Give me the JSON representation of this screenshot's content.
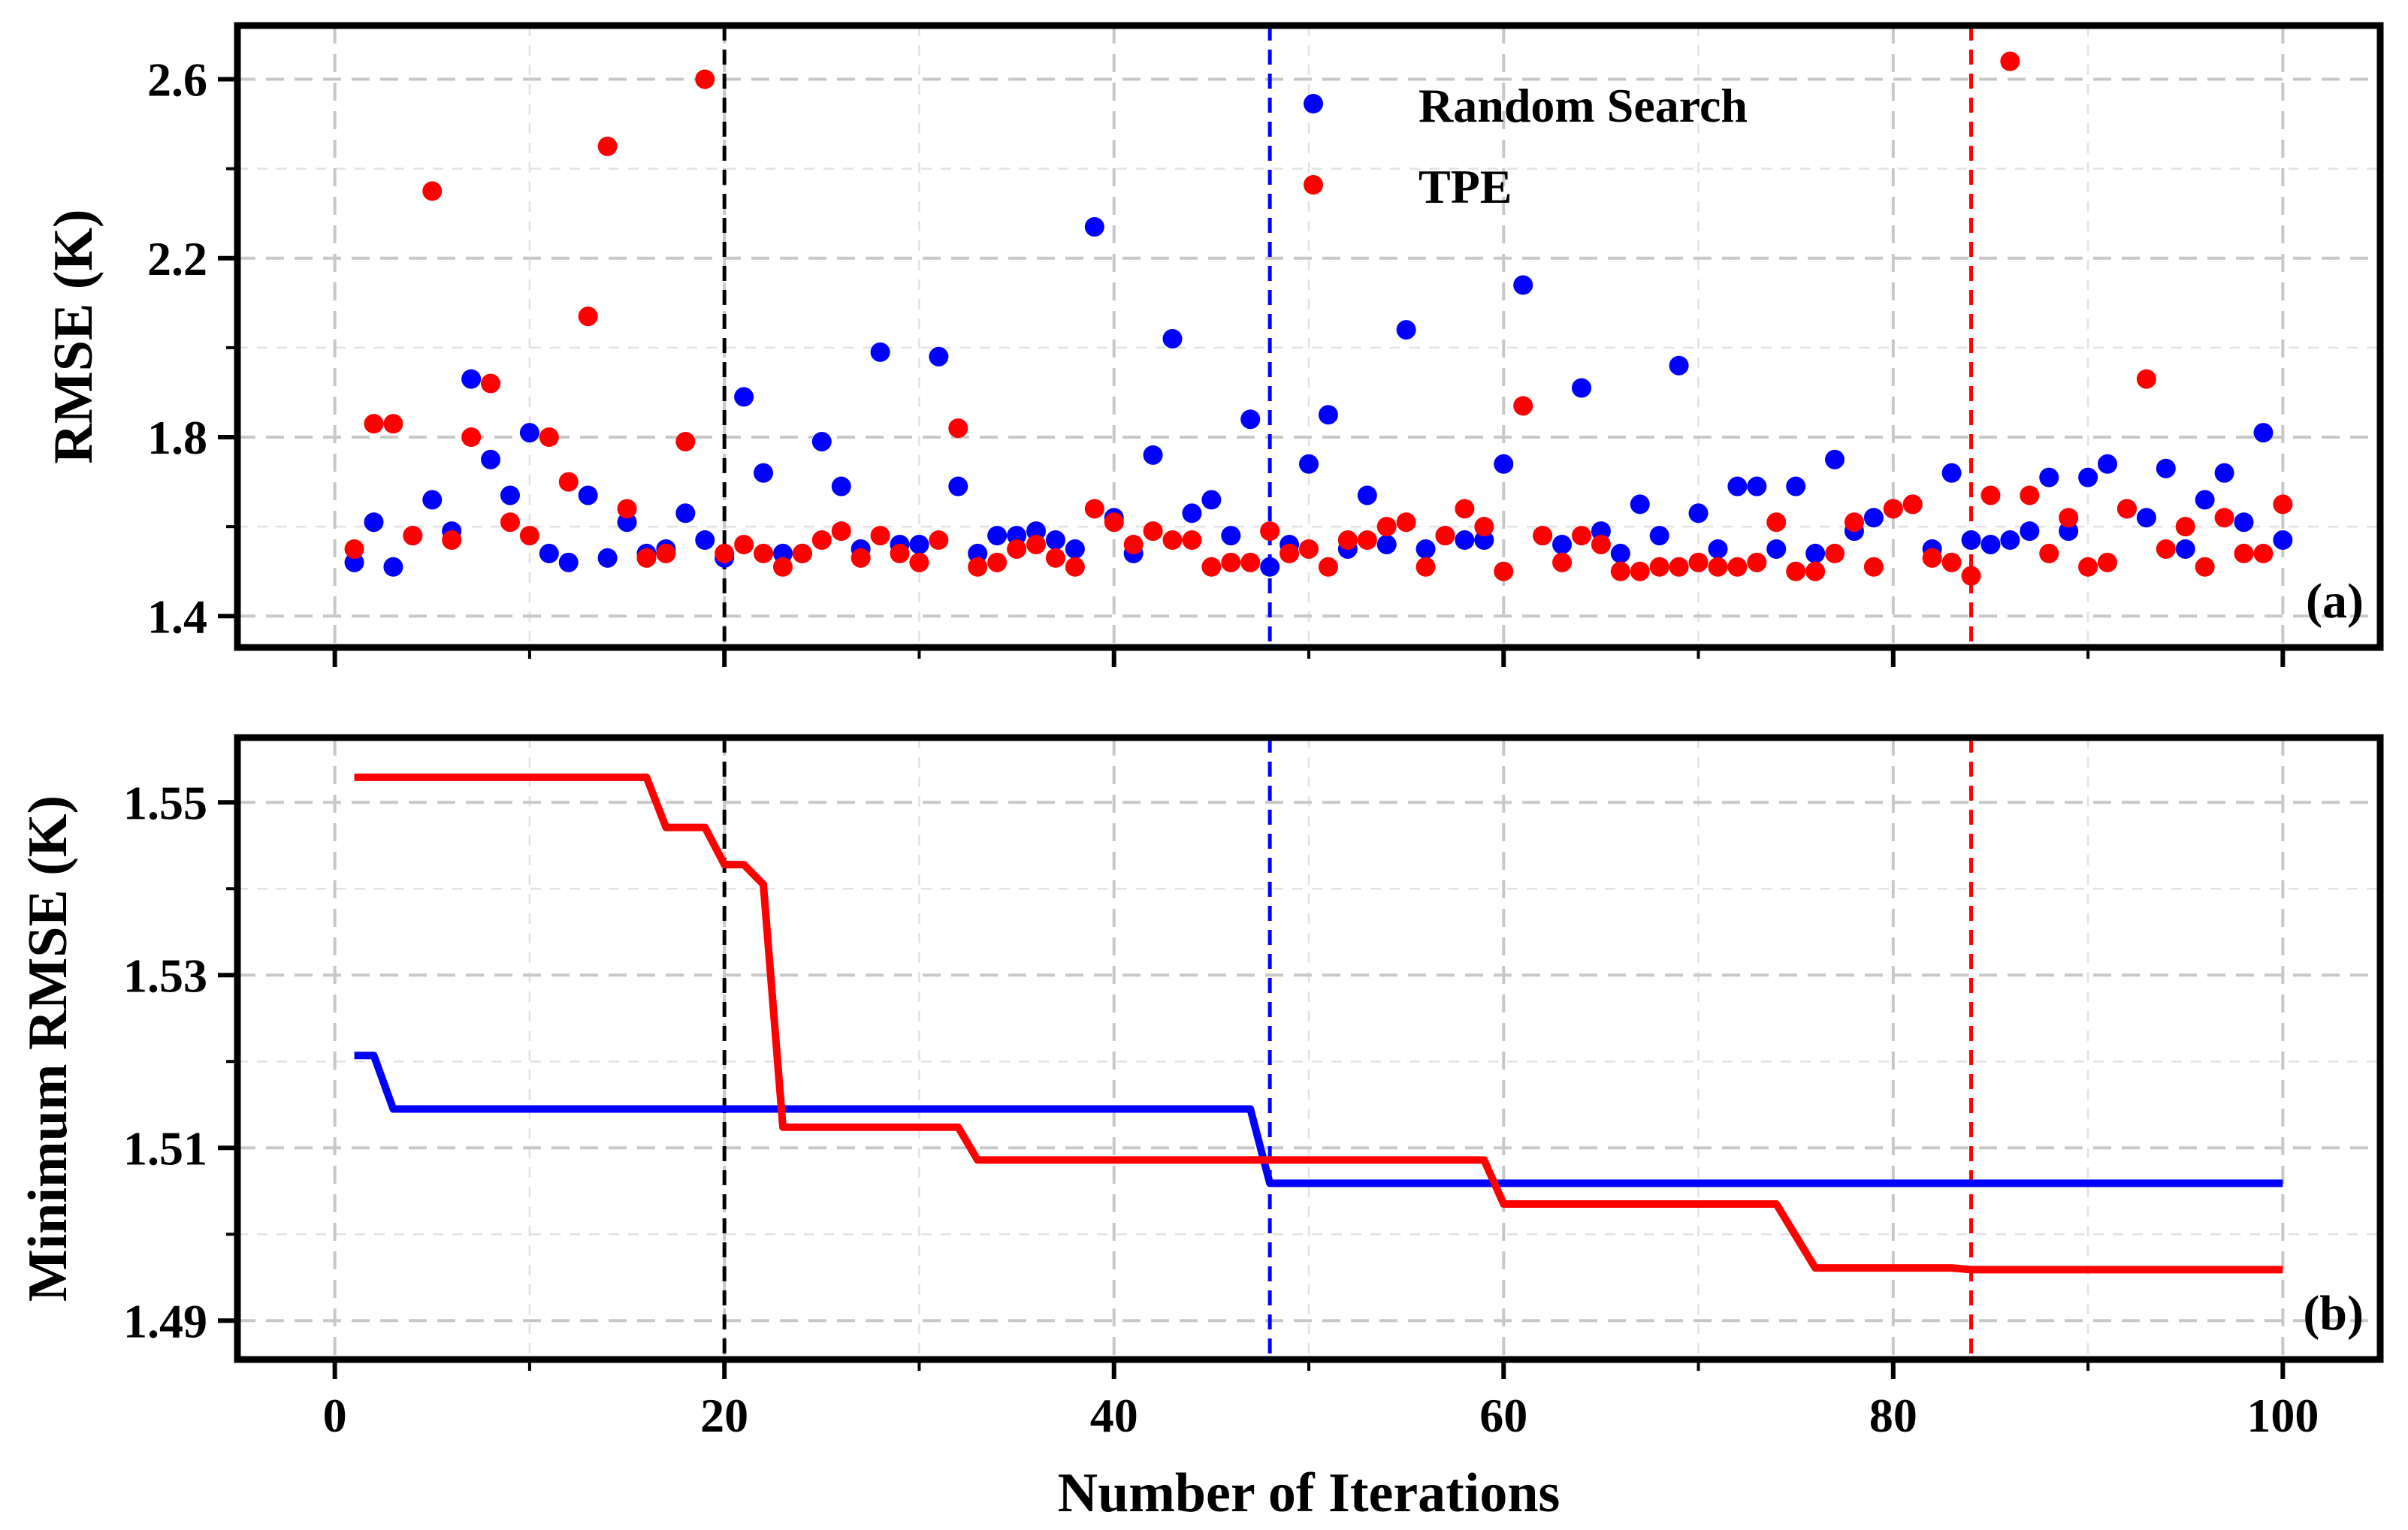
{
  "chart_data": [
    {
      "panel": "(a)",
      "type": "scatter",
      "ylabel": "RMSE (K)",
      "xlim": [
        -5,
        105
      ],
      "ylim": [
        1.33,
        2.72
      ],
      "yticks": [
        1.4,
        1.8,
        2.2,
        2.6
      ],
      "ytick_labels": [
        "1.4",
        "1.8",
        "2.2",
        "2.6"
      ],
      "legend": {
        "position": "top-center",
        "entries": [
          "Random Search",
          "TPE"
        ]
      },
      "vlines": [
        {
          "x": 20,
          "color": "#000000"
        },
        {
          "x": 48,
          "color": "#0000ff"
        },
        {
          "x": 84,
          "color": "#ff0000"
        }
      ],
      "series": [
        {
          "name": "Random Search",
          "color": "#0000ff",
          "x": [
            1,
            2,
            3,
            4,
            5,
            6,
            7,
            8,
            9,
            10,
            11,
            12,
            13,
            14,
            15,
            16,
            17,
            18,
            19,
            20,
            21,
            22,
            23,
            24,
            25,
            26,
            27,
            28,
            29,
            30,
            31,
            32,
            33,
            34,
            35,
            36,
            37,
            38,
            39,
            40,
            41,
            42,
            43,
            44,
            45,
            46,
            47,
            48,
            49,
            50,
            51,
            52,
            53,
            54,
            55,
            56,
            57,
            58,
            59,
            60,
            61,
            62,
            63,
            64,
            65,
            66,
            67,
            68,
            69,
            70,
            71,
            72,
            73,
            74,
            75,
            76,
            77,
            78,
            79,
            80,
            81,
            82,
            83,
            84,
            85,
            86,
            87,
            88,
            89,
            90,
            91,
            92,
            93,
            94,
            95,
            96,
            97,
            98,
            99,
            100
          ],
          "y": [
            1.52,
            1.61,
            1.51,
            1.58,
            1.66,
            1.59,
            1.93,
            1.75,
            1.67,
            1.81,
            1.54,
            1.52,
            1.67,
            1.53,
            1.61,
            1.54,
            1.55,
            1.63,
            1.57,
            1.53,
            1.89,
            1.72,
            1.54,
            1.54,
            1.79,
            1.69,
            1.55,
            1.99,
            1.56,
            1.56,
            1.98,
            1.69,
            1.54,
            1.58,
            1.58,
            1.59,
            1.57,
            1.55,
            2.27,
            1.62,
            1.54,
            1.76,
            2.02,
            1.63,
            1.66,
            1.58,
            1.84,
            1.51,
            1.56,
            1.74,
            1.85,
            1.55,
            1.67,
            1.56,
            2.04,
            1.55,
            1.58,
            1.57,
            1.57,
            1.74,
            2.14,
            1.58,
            1.56,
            1.91,
            1.59,
            1.54,
            1.65,
            1.58,
            1.96,
            1.63,
            1.55,
            1.69,
            1.69,
            1.55,
            1.69,
            1.54,
            1.75,
            1.59,
            1.62,
            1.64,
            1.65,
            1.55,
            1.72,
            1.57,
            1.56,
            1.57,
            1.59,
            1.71,
            1.59,
            1.71,
            1.74,
            1.64,
            1.62,
            1.73,
            1.55,
            1.66,
            1.72,
            1.61,
            1.81,
            1.57
          ]
        },
        {
          "name": "TPE",
          "color": "#ff0000",
          "x": [
            1,
            2,
            3,
            4,
            5,
            6,
            7,
            8,
            9,
            10,
            11,
            12,
            13,
            14,
            15,
            16,
            17,
            18,
            19,
            20,
            21,
            22,
            23,
            24,
            25,
            26,
            27,
            28,
            29,
            30,
            31,
            32,
            33,
            34,
            35,
            36,
            37,
            38,
            39,
            40,
            41,
            42,
            43,
            44,
            45,
            46,
            47,
            48,
            49,
            50,
            51,
            52,
            53,
            54,
            55,
            56,
            57,
            58,
            59,
            60,
            61,
            62,
            63,
            64,
            65,
            66,
            67,
            68,
            69,
            70,
            71,
            72,
            73,
            74,
            75,
            76,
            77,
            78,
            79,
            80,
            81,
            82,
            83,
            84,
            85,
            86,
            87,
            88,
            89,
            90,
            91,
            92,
            93,
            94,
            95,
            96,
            97,
            98,
            99,
            100
          ],
          "y": [
            1.55,
            1.83,
            1.83,
            1.58,
            2.35,
            1.57,
            1.8,
            1.92,
            1.61,
            1.58,
            1.8,
            1.7,
            2.07,
            2.45,
            1.64,
            1.53,
            1.54,
            1.79,
            2.6,
            1.54,
            1.56,
            1.54,
            1.51,
            1.54,
            1.57,
            1.59,
            1.53,
            1.58,
            1.54,
            1.52,
            1.57,
            1.82,
            1.51,
            1.52,
            1.55,
            1.56,
            1.53,
            1.51,
            1.64,
            1.61,
            1.56,
            1.59,
            1.57,
            1.57,
            1.51,
            1.52,
            1.52,
            1.59,
            1.54,
            1.55,
            1.51,
            1.57,
            1.57,
            1.6,
            1.61,
            1.51,
            1.58,
            1.64,
            1.6,
            1.5,
            1.87,
            1.58,
            1.52,
            1.58,
            1.56,
            1.5,
            1.5,
            1.51,
            1.51,
            1.52,
            1.51,
            1.51,
            1.52,
            1.61,
            1.5,
            1.5,
            1.54,
            1.61,
            1.51,
            1.64,
            1.65,
            1.53,
            1.52,
            1.49,
            1.67,
            2.64,
            1.67,
            1.54,
            1.62,
            1.51,
            1.52,
            1.64,
            1.93,
            1.55,
            1.6,
            1.51,
            1.62,
            1.54,
            1.54,
            1.65
          ]
        }
      ]
    },
    {
      "panel": "(b)",
      "type": "line",
      "xlabel": "Number of Iterations",
      "ylabel": "Minimum RMSE (K)",
      "xlim": [
        -5,
        105
      ],
      "ylim": [
        1.4855,
        1.5575
      ],
      "xticks": [
        0,
        20,
        40,
        60,
        80,
        100
      ],
      "xtick_labels": [
        "0",
        "20",
        "40",
        "60",
        "80",
        "100"
      ],
      "yticks": [
        1.49,
        1.51,
        1.53,
        1.55
      ],
      "ytick_labels": [
        "1.49",
        "1.51",
        "1.53",
        "1.55"
      ],
      "vlines": [
        {
          "x": 20,
          "color": "#000000"
        },
        {
          "x": 48,
          "color": "#0000ff"
        },
        {
          "x": 84,
          "color": "#ff0000"
        }
      ],
      "series": [
        {
          "name": "Random Search",
          "color": "#0000ff",
          "x": [
            1,
            2,
            3,
            47,
            48,
            100
          ],
          "y": [
            1.5207,
            1.5207,
            1.5145,
            1.5145,
            1.5059,
            1.5059
          ]
        },
        {
          "name": "TPE",
          "color": "#ff0000",
          "x": [
            1,
            16,
            17,
            19,
            20,
            21,
            22,
            23,
            32,
            33,
            59,
            60,
            74,
            76,
            83,
            84,
            100
          ],
          "y": [
            1.5529,
            1.5529,
            1.5471,
            1.5471,
            1.5428,
            1.5428,
            1.5405,
            1.5124,
            1.5124,
            1.5086,
            1.5086,
            1.5035,
            1.5035,
            1.4961,
            1.4961,
            1.4959,
            1.4959
          ]
        }
      ]
    }
  ]
}
